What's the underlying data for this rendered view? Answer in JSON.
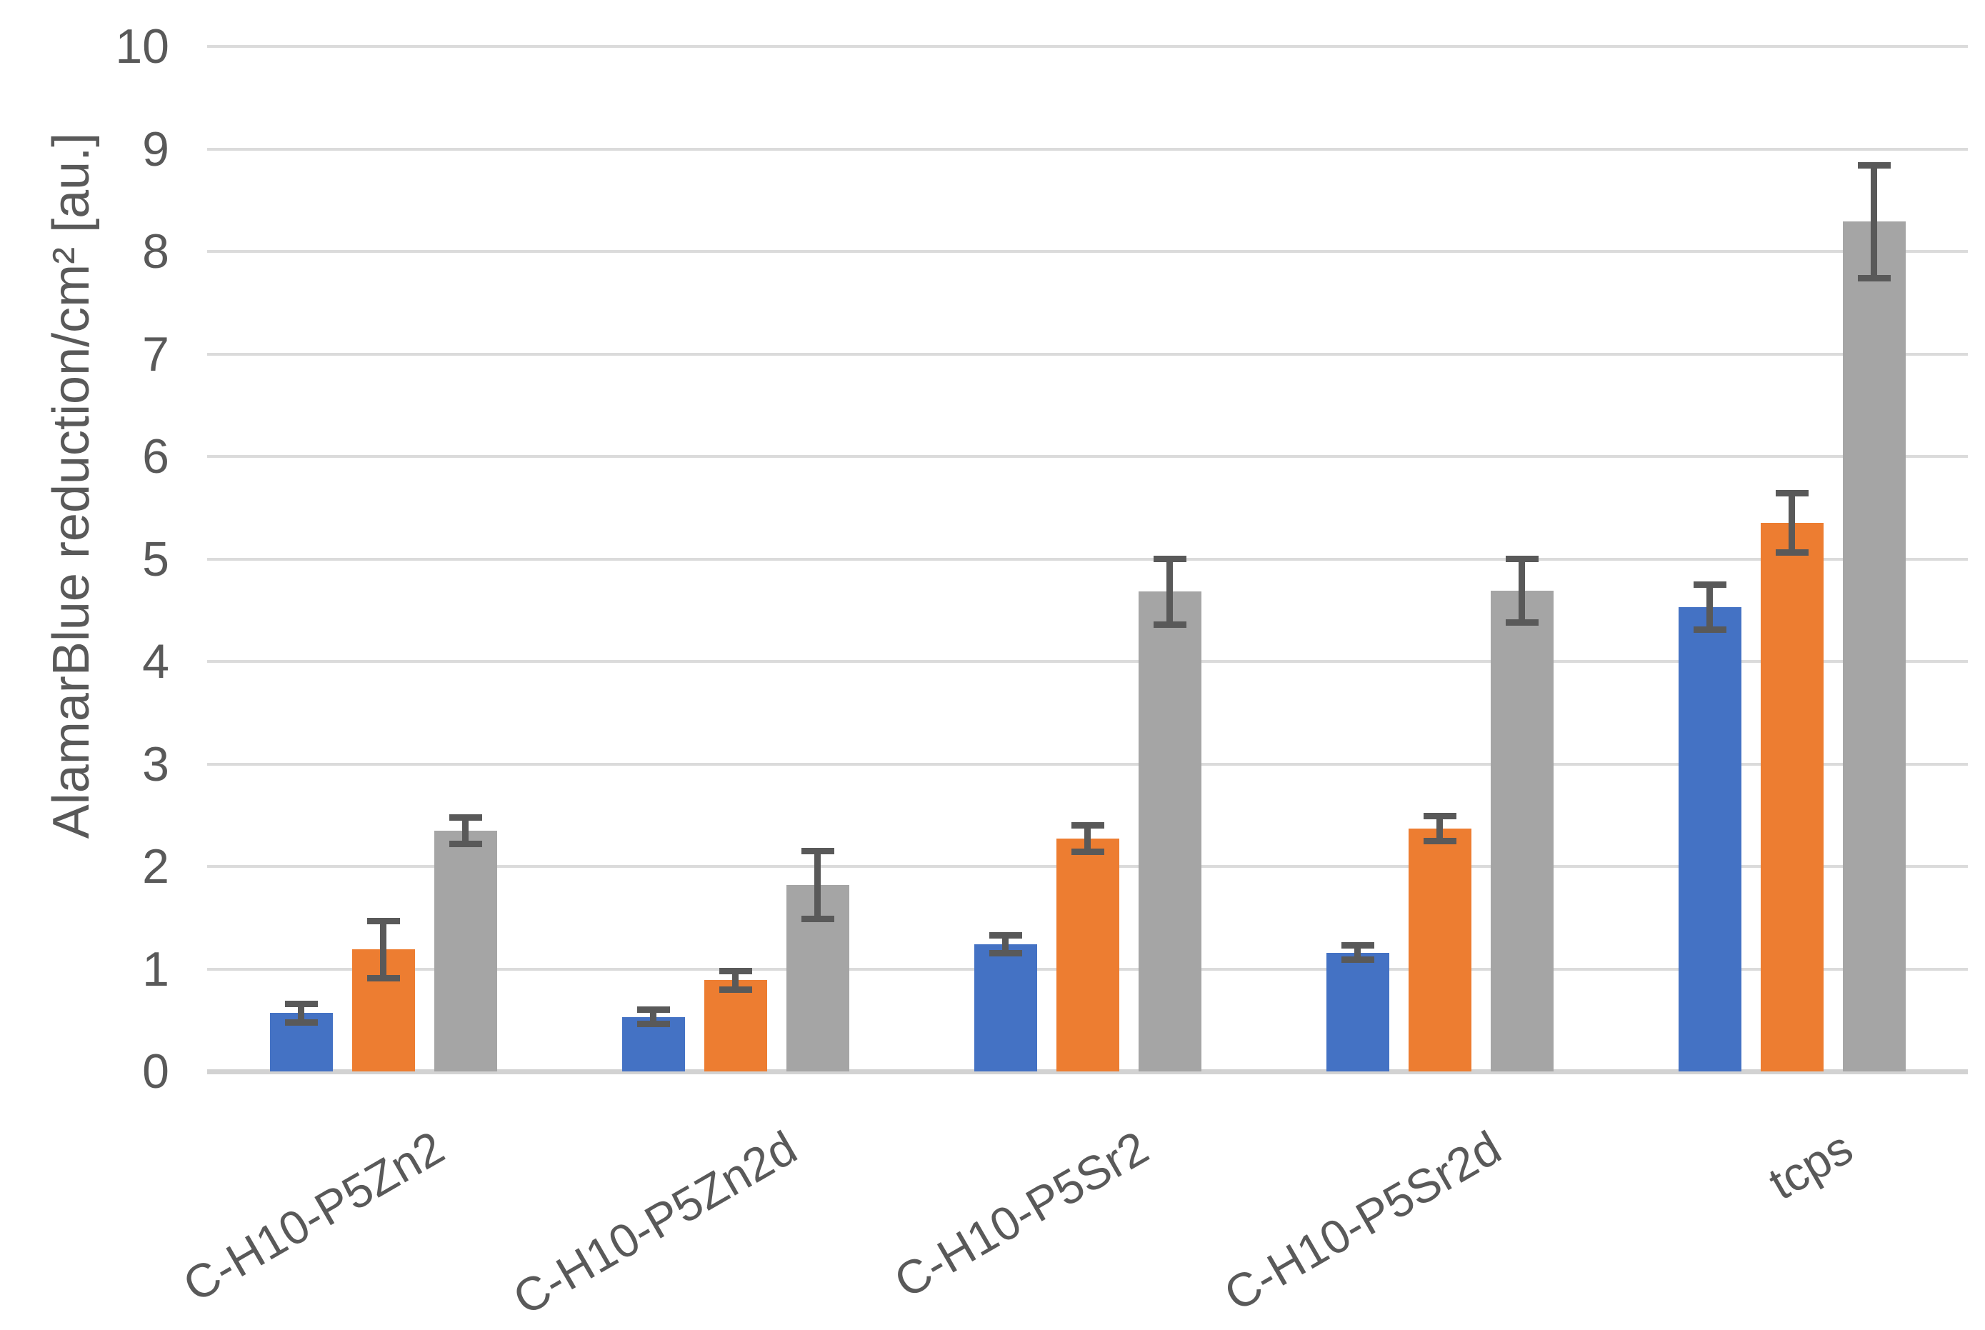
{
  "chart_data": {
    "type": "bar",
    "title": "",
    "xlabel": "",
    "ylabel": "AlamarBlue reduction/cm² [au.]",
    "ylim": [
      0,
      10
    ],
    "yticks": [
      0,
      1,
      2,
      3,
      4,
      5,
      6,
      7,
      8,
      9,
      10
    ],
    "grid": "horizontal gridlines on, no vertical axis line",
    "legend_position": "none",
    "categories": [
      "C-H10-P5Zn2",
      "C-H10-P5Zn2d",
      "C-H10-P5Sr2",
      "C-H10-P5Sr2d",
      "tcps"
    ],
    "series": [
      {
        "name": "blue-series",
        "color": "#4472C4",
        "values": [
          0.57,
          0.53,
          1.24,
          1.16,
          4.53
        ],
        "errors": [
          0.09,
          0.07,
          0.09,
          0.07,
          0.22
        ]
      },
      {
        "name": "orange-series",
        "color": "#ED7D31",
        "values": [
          1.19,
          0.89,
          2.27,
          2.37,
          5.35
        ],
        "errors": [
          0.28,
          0.09,
          0.13,
          0.12,
          0.29
        ]
      },
      {
        "name": "gray-series",
        "color": "#A5A5A5",
        "values": [
          2.35,
          1.82,
          4.68,
          4.69,
          8.29
        ],
        "errors": [
          0.13,
          0.33,
          0.32,
          0.31,
          0.55
        ]
      }
    ],
    "error_bar_color": "#595959",
    "axis_text_color": "#595959",
    "gridline_color": "#DBDBDB"
  }
}
